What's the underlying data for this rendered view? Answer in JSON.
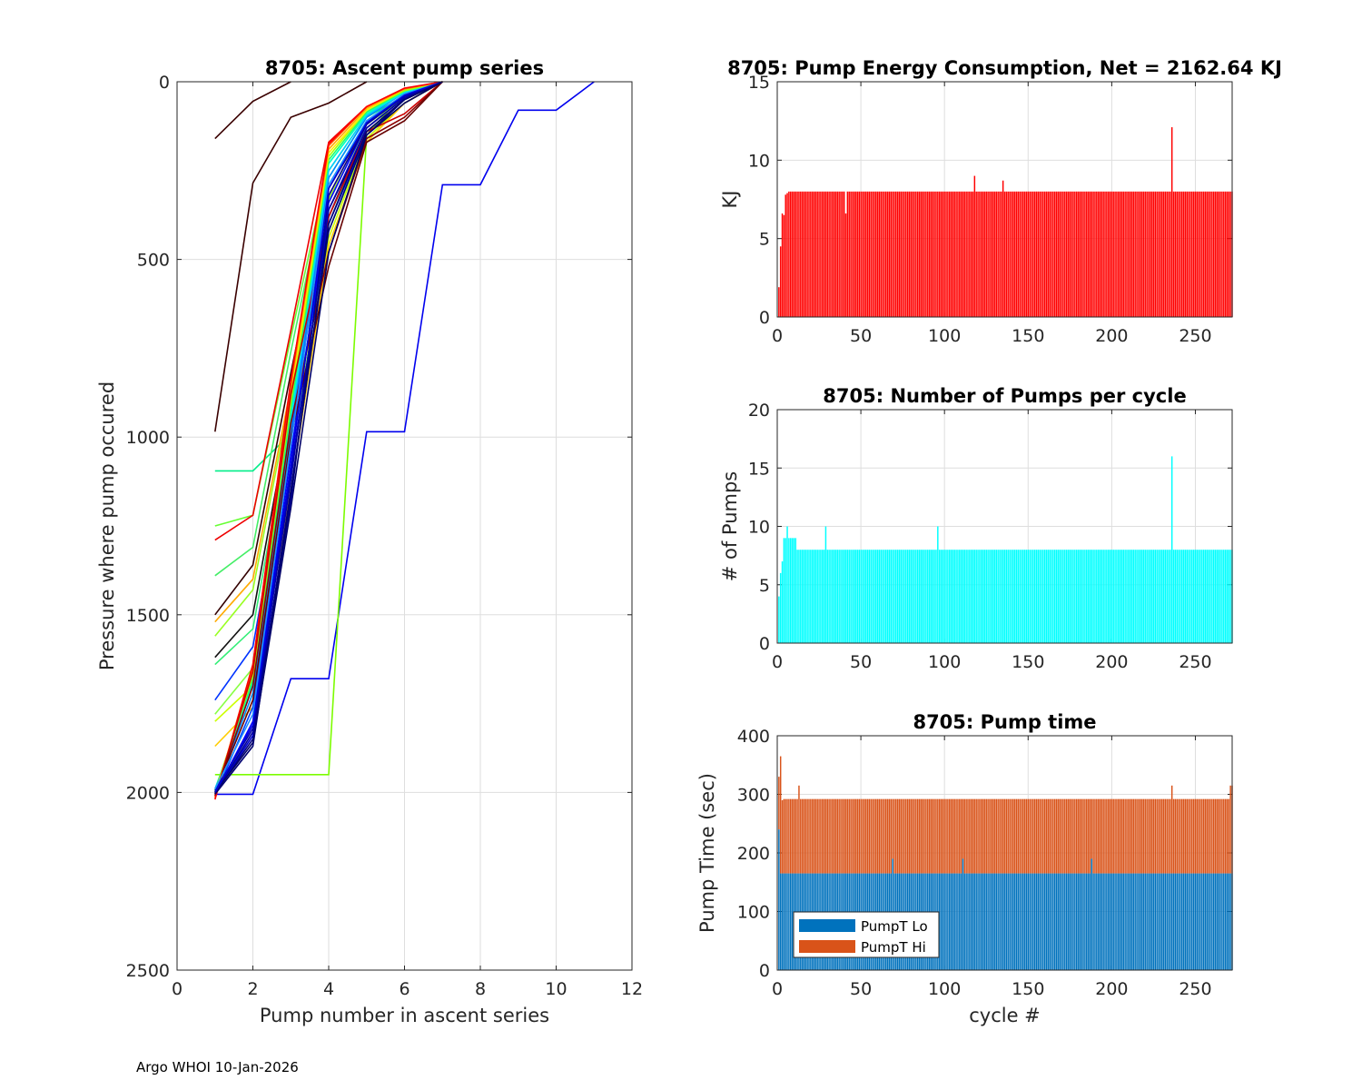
{
  "footer": "Argo WHOI 10-Jan-2026",
  "chart_data": [
    {
      "type": "line",
      "title": "8705: Ascent pump series",
      "xlabel": "Pump number in ascent series",
      "ylabel": "Pressure where pump occured",
      "xlim": [
        0,
        12
      ],
      "ylim": [
        0,
        2500
      ],
      "y_reversed": true,
      "xticks": [
        "0",
        "2",
        "4",
        "6",
        "8",
        "10",
        "12"
      ],
      "yticks": [
        "0",
        "500",
        "1000",
        "1500",
        "2000",
        "2500"
      ],
      "grid": true,
      "series": [
        {
          "name": "outlier-blue",
          "color": "#0000ee",
          "x": [
            1,
            2,
            3,
            4,
            5,
            6,
            7,
            8,
            9,
            10,
            11
          ],
          "y": [
            2005,
            2005,
            1680,
            1680,
            985,
            985,
            290,
            290,
            80,
            80,
            0
          ]
        },
        {
          "name": "outlier-green",
          "color": "#7cfc00",
          "x": [
            1,
            2,
            3,
            4,
            5,
            6,
            7
          ],
          "y": [
            1950,
            1950,
            1950,
            1950,
            150,
            30,
            0
          ]
        },
        {
          "name": "near-surface-1",
          "color": "#3a0000",
          "x": [
            1,
            2,
            3
          ],
          "y": [
            160,
            55,
            0
          ]
        },
        {
          "name": "near-surface-2",
          "color": "#3a0000",
          "x": [
            1,
            2,
            3,
            4,
            5
          ],
          "y": [
            985,
            285,
            100,
            60,
            0
          ]
        },
        {
          "name": "mid-1",
          "color": "#00ee88",
          "x": [
            1,
            2,
            3,
            4,
            5,
            6,
            7
          ],
          "y": [
            1095,
            1095,
            990,
            270,
            100,
            40,
            0
          ]
        },
        {
          "name": "mid-2",
          "color": "#66ff33",
          "x": [
            1,
            2,
            3,
            4,
            5,
            6,
            7
          ],
          "y": [
            1250,
            1220,
            720,
            230,
            90,
            30,
            0
          ]
        },
        {
          "name": "mid-3",
          "color": "#ee0000",
          "x": [
            1,
            2,
            3,
            4,
            5,
            6,
            7
          ],
          "y": [
            1290,
            1220,
            700,
            170,
            70,
            20,
            0
          ]
        },
        {
          "name": "mid-4",
          "color": "#44ee66",
          "x": [
            1,
            2,
            3,
            4,
            5,
            6,
            7
          ],
          "y": [
            1390,
            1310,
            760,
            250,
            95,
            30,
            0
          ]
        },
        {
          "name": "mid-5",
          "color": "#330000",
          "x": [
            1,
            2,
            3,
            4,
            5,
            6,
            7
          ],
          "y": [
            1500,
            1360,
            820,
            300,
            120,
            40,
            0
          ]
        },
        {
          "name": "mid-6",
          "color": "#ffaa00",
          "x": [
            1,
            2,
            3,
            4,
            5,
            6,
            7
          ],
          "y": [
            1520,
            1400,
            860,
            320,
            120,
            40,
            0
          ]
        },
        {
          "name": "mid-7",
          "color": "#99ff22",
          "x": [
            1,
            2,
            3,
            4,
            5,
            6,
            7
          ],
          "y": [
            1560,
            1430,
            880,
            330,
            130,
            40,
            0
          ]
        },
        {
          "name": "mid-8",
          "color": "#111111",
          "x": [
            1,
            2,
            3,
            4,
            5,
            6,
            7
          ],
          "y": [
            1620,
            1500,
            920,
            360,
            140,
            50,
            0
          ]
        },
        {
          "name": "mid-9",
          "color": "#33ee77",
          "x": [
            1,
            2,
            3,
            4,
            5,
            6,
            7
          ],
          "y": [
            1640,
            1540,
            950,
            380,
            150,
            50,
            0
          ]
        },
        {
          "name": "mid-10",
          "color": "#0033ff",
          "x": [
            1,
            2,
            3,
            4,
            5,
            6,
            7
          ],
          "y": [
            1740,
            1590,
            1000,
            400,
            150,
            50,
            0
          ]
        },
        {
          "name": "mid-11",
          "color": "#88ff44",
          "x": [
            1,
            2,
            3,
            4,
            5,
            6,
            7
          ],
          "y": [
            1780,
            1650,
            1050,
            420,
            160,
            60,
            0
          ]
        },
        {
          "name": "mid-12",
          "color": "#ccff00",
          "x": [
            1,
            2,
            3,
            4,
            5,
            6,
            7
          ],
          "y": [
            1800,
            1700,
            1100,
            440,
            160,
            60,
            0
          ]
        },
        {
          "name": "mid-13",
          "color": "#ffcc00",
          "x": [
            1,
            2,
            3,
            4,
            5,
            6,
            7
          ],
          "y": [
            1870,
            1760,
            1150,
            460,
            170,
            60,
            0
          ]
        },
        {
          "name": "deep-1",
          "color": "#000080",
          "x": [
            1,
            2,
            3,
            4,
            5,
            6,
            7
          ],
          "y": [
            2000,
            1850,
            1150,
            420,
            150,
            50,
            0
          ]
        },
        {
          "name": "deep-2",
          "color": "#0000cd",
          "x": [
            1,
            2,
            3,
            4,
            5,
            6,
            7
          ],
          "y": [
            2000,
            1840,
            1100,
            380,
            130,
            45,
            0
          ]
        },
        {
          "name": "deep-3",
          "color": "#0000ff",
          "x": [
            1,
            2,
            3,
            4,
            5,
            6,
            7
          ],
          "y": [
            2005,
            1800,
            1050,
            340,
            120,
            40,
            0
          ]
        },
        {
          "name": "deep-4",
          "color": "#0044ff",
          "x": [
            1,
            2,
            3,
            4,
            5,
            6,
            7
          ],
          "y": [
            2010,
            1760,
            1000,
            300,
            110,
            35,
            0
          ]
        },
        {
          "name": "deep-5",
          "color": "#0088ff",
          "x": [
            1,
            2,
            3,
            4,
            5,
            6,
            7
          ],
          "y": [
            2000,
            1720,
            980,
            270,
            100,
            30,
            0
          ]
        },
        {
          "name": "deep-6",
          "color": "#00ccff",
          "x": [
            1,
            2,
            3,
            4,
            5,
            6,
            7
          ],
          "y": [
            1990,
            1700,
            960,
            250,
            95,
            30,
            0
          ]
        },
        {
          "name": "deep-7",
          "color": "#00ffcc",
          "x": [
            1,
            2,
            3,
            4,
            5,
            6,
            7
          ],
          "y": [
            2000,
            1690,
            940,
            230,
            90,
            28,
            0
          ]
        },
        {
          "name": "deep-8",
          "color": "#22ff66",
          "x": [
            1,
            2,
            3,
            4,
            5,
            6,
            7
          ],
          "y": [
            1995,
            1680,
            920,
            220,
            85,
            25,
            0
          ]
        },
        {
          "name": "deep-9",
          "color": "#aaff00",
          "x": [
            1,
            2,
            3,
            4,
            5,
            6,
            7
          ],
          "y": [
            2000,
            1670,
            900,
            210,
            80,
            25,
            0
          ]
        },
        {
          "name": "deep-10",
          "color": "#ffee00",
          "x": [
            1,
            2,
            3,
            4,
            5,
            6,
            7
          ],
          "y": [
            2005,
            1660,
            880,
            200,
            80,
            20,
            0
          ]
        },
        {
          "name": "deep-11",
          "color": "#ffaa00",
          "x": [
            1,
            2,
            3,
            4,
            5,
            6,
            7
          ],
          "y": [
            2010,
            1650,
            860,
            190,
            75,
            20,
            0
          ]
        },
        {
          "name": "deep-12",
          "color": "#ff6600",
          "x": [
            1,
            2,
            3,
            4,
            5,
            6,
            7
          ],
          "y": [
            2015,
            1640,
            850,
            180,
            70,
            20,
            0
          ]
        },
        {
          "name": "deep-13",
          "color": "#ff0000",
          "x": [
            1,
            2,
            3,
            4,
            5,
            6,
            7
          ],
          "y": [
            2020,
            1640,
            840,
            175,
            70,
            18,
            0
          ]
        },
        {
          "name": "deep-14",
          "color": "#cc0000",
          "x": [
            1,
            2,
            3,
            4,
            5,
            6,
            7
          ],
          "y": [
            2010,
            1660,
            880,
            380,
            140,
            90,
            0
          ]
        },
        {
          "name": "deep-15",
          "color": "#8b0000",
          "x": [
            1,
            2,
            3,
            4,
            5,
            6,
            7
          ],
          "y": [
            2005,
            1700,
            960,
            480,
            160,
            100,
            0
          ]
        },
        {
          "name": "deep-16",
          "color": "#660000",
          "x": [
            1,
            2,
            3,
            4,
            5,
            6,
            7
          ],
          "y": [
            2000,
            1740,
            1000,
            520,
            170,
            110,
            0
          ]
        },
        {
          "name": "deep-17",
          "color": "#000066",
          "x": [
            1,
            2,
            3,
            4,
            5,
            6,
            7
          ],
          "y": [
            2000,
            1860,
            1200,
            480,
            150,
            60,
            0
          ]
        },
        {
          "name": "deep-18",
          "color": "#0000aa",
          "x": [
            1,
            2,
            3,
            4,
            5,
            6,
            7
          ],
          "y": [
            1995,
            1820,
            1120,
            360,
            130,
            45,
            0
          ]
        },
        {
          "name": "deep-19",
          "color": "#1e90ff",
          "x": [
            1,
            2,
            3,
            4,
            5,
            6,
            7
          ],
          "y": [
            1990,
            1780,
            1020,
            290,
            110,
            35,
            0
          ]
        },
        {
          "name": "deep-20",
          "color": "#000099",
          "x": [
            1,
            2,
            3,
            4,
            5,
            6,
            7
          ],
          "y": [
            2000,
            1830,
            1180,
            320,
            120,
            40,
            0
          ]
        },
        {
          "name": "deep-21",
          "color": "#0000dd",
          "x": [
            1,
            2,
            3,
            4,
            5,
            6,
            7
          ],
          "y": [
            2000,
            1810,
            1080,
            300,
            115,
            38,
            0
          ]
        },
        {
          "name": "deep-22",
          "color": "#000070",
          "x": [
            1,
            2,
            3,
            4,
            5,
            6,
            7
          ],
          "y": [
            2005,
            1870,
            1160,
            400,
            140,
            50,
            0
          ]
        }
      ]
    },
    {
      "type": "bar",
      "title": "8705: Pump Energy Consumption,  Net = 2162.64 KJ",
      "xlabel": "",
      "ylabel": "KJ",
      "xlim": [
        0,
        272
      ],
      "ylim": [
        0,
        15
      ],
      "xticks": [
        "0",
        "50",
        "100",
        "150",
        "200",
        "250"
      ],
      "yticks": [
        "0",
        "5",
        "10",
        "15"
      ],
      "grid": true,
      "color": "#ff0000",
      "x_start": 1,
      "x_end": 272,
      "typical_value": 8.0,
      "special_values": {
        "1": 1.9,
        "2": 4.5,
        "3": 6.6,
        "4": 6.5,
        "5": 7.8,
        "6": 7.9,
        "41": 6.6,
        "118": 9.0,
        "135": 8.7,
        "236": 12.1
      }
    },
    {
      "type": "bar",
      "title": "8705: Number of Pumps per cycle",
      "xlabel": "",
      "ylabel": "# of Pumps",
      "xlim": [
        0,
        272
      ],
      "ylim": [
        0,
        20
      ],
      "xticks": [
        "0",
        "50",
        "100",
        "150",
        "200",
        "250"
      ],
      "yticks": [
        "0",
        "5",
        "10",
        "15",
        "20"
      ],
      "grid": true,
      "color": "#00ffff",
      "x_start": 1,
      "x_end": 272,
      "typical_value": 8,
      "special_values": {
        "1": 4,
        "2": 6,
        "3": 7,
        "4": 9,
        "5": 9,
        "6": 10,
        "7": 9,
        "8": 9,
        "9": 9,
        "10": 9,
        "11": 9,
        "29": 10,
        "96": 10,
        "236": 16
      }
    },
    {
      "type": "bar",
      "stacked": true,
      "title": "8705: Pump time",
      "xlabel": "cycle #",
      "ylabel": "Pump Time (sec)",
      "xlim": [
        0,
        272
      ],
      "ylim": [
        0,
        400
      ],
      "xticks": [
        "0",
        "50",
        "100",
        "150",
        "200",
        "250"
      ],
      "yticks": [
        "0",
        "100",
        "200",
        "300",
        "400"
      ],
      "grid": true,
      "legend": {
        "position": "bottom-left",
        "entries": [
          "PumpT Lo",
          "PumpT Hi"
        ]
      },
      "series": [
        {
          "name": "PumpT Lo",
          "color": "#0072bd",
          "typical_value": 165,
          "special_values": {
            "1": 240,
            "69": 190,
            "111": 190,
            "188": 190
          }
        },
        {
          "name": "PumpT Hi",
          "color": "#d95319",
          "typical_total": 292,
          "special_totals": {
            "1": 330,
            "2": 365,
            "3": 290,
            "13": 315,
            "236": 315,
            "271": 315,
            "272": 315
          }
        }
      ]
    }
  ]
}
